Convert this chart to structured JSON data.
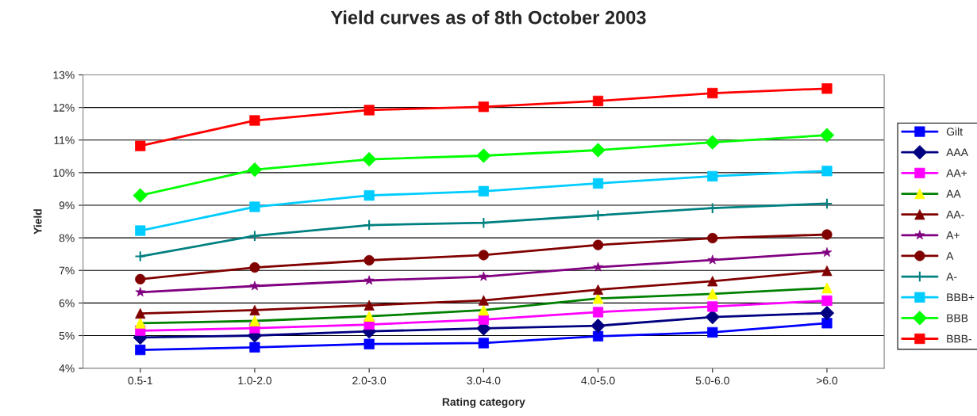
{
  "chart_data": {
    "type": "line",
    "title": "Yield curves as of 8th October 2003",
    "xlabel": "Rating category",
    "ylabel": "Yield",
    "categories": [
      "0.5-1",
      "1.0-2.0",
      "2.0-3.0",
      "3.0-4.0",
      "4.0-5.0",
      "5.0-6.0",
      ">6.0"
    ],
    "ylim": [
      4,
      13
    ],
    "yticks": [
      {
        "value": 4,
        "label": "4%"
      },
      {
        "value": 5,
        "label": "5%"
      },
      {
        "value": 6,
        "label": "6%"
      },
      {
        "value": 7,
        "label": "7%"
      },
      {
        "value": 8,
        "label": "8%"
      },
      {
        "value": 9,
        "label": "9%"
      },
      {
        "value": 10,
        "label": "10%"
      },
      {
        "value": 11,
        "label": "11%"
      },
      {
        "value": 12,
        "label": "12%"
      },
      {
        "value": 13,
        "label": "13%"
      }
    ],
    "grid": "y",
    "legend": "right",
    "line_style": "solid",
    "series": [
      {
        "name": "Gilt",
        "color": "#0000ff",
        "marker": "square",
        "values": [
          4.56,
          4.64,
          4.74,
          4.77,
          4.98,
          5.1,
          5.38
        ]
      },
      {
        "name": "AAA",
        "color": "#000080",
        "marker": "diamond",
        "values": [
          4.94,
          5.0,
          5.13,
          5.22,
          5.3,
          5.57,
          5.69
        ]
      },
      {
        "name": "AA+",
        "color": "#ff00ff",
        "marker": "square",
        "values": [
          5.15,
          5.23,
          5.34,
          5.49,
          5.72,
          5.89,
          6.07
        ]
      },
      {
        "name": "AA",
        "color": "#008000",
        "colors": [
          "#ffff00",
          "#ffff00",
          "#ffff00",
          "#ffff00",
          "#ffff00",
          "#ffff00",
          "#ffff00"
        ],
        "marker": "triangle",
        "values": [
          5.38,
          5.45,
          5.59,
          5.78,
          6.14,
          6.28,
          6.46
        ]
      },
      {
        "name": "AA-",
        "color": "#800000",
        "marker": "triangle",
        "values": [
          5.68,
          5.78,
          5.93,
          6.08,
          6.41,
          6.67,
          6.99
        ]
      },
      {
        "name": "A+",
        "color": "#800080",
        "marker": "star",
        "values": [
          6.33,
          6.52,
          6.69,
          6.81,
          7.1,
          7.32,
          7.55
        ]
      },
      {
        "name": "A",
        "color": "#800000",
        "marker": "circle",
        "values": [
          6.73,
          7.09,
          7.31,
          7.47,
          7.78,
          7.99,
          8.1
        ]
      },
      {
        "name": "A-",
        "color": "#008080",
        "marker": "cross",
        "values": [
          7.43,
          8.06,
          8.39,
          8.46,
          8.69,
          8.91,
          9.05
        ]
      },
      {
        "name": "BBB+",
        "color": "#00ccff",
        "marker": "square",
        "values": [
          8.22,
          8.95,
          9.3,
          9.43,
          9.67,
          9.89,
          10.05
        ]
      },
      {
        "name": "BBB",
        "color": "#00ff00",
        "marker": "diamond",
        "values": [
          9.3,
          10.09,
          10.41,
          10.52,
          10.69,
          10.93,
          11.15
        ]
      },
      {
        "name": "BBB-",
        "color": "#ff0000",
        "marker": "square",
        "values": [
          10.82,
          11.6,
          11.92,
          12.02,
          12.2,
          12.44,
          12.58
        ]
      }
    ]
  }
}
